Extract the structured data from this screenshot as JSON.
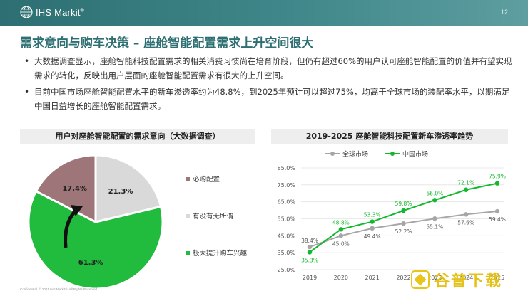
{
  "header": {
    "logo_text": "IHS Markit",
    "logo_mark": "®",
    "page_number": "12"
  },
  "title": "需求意向与购车决策 – 座舱智能配置需求上升空间很大",
  "bullets": [
    "大数据调查显示，座舱智能科技配置需求的相关消费习惯尚在培育阶段，但仍有超过60%的用户认可座舱智能配置的价值并有望实现需求的转化，反映出用户层面的座舱智能配置需求有很大的上升空间。",
    "目前中国市场座舱智能配置水平的新车渗透率约为48.8%，到2025年预计可以超过75%，均高于全球市场的装配率水平，以期满足中国日益增长的座舱智能配置需求。"
  ],
  "footer": {
    "confidential": "Confidential. © 2021 IHS Markit®. All Rights Reserved."
  },
  "watermark": {
    "text": "谷普下载"
  },
  "chart_data": [
    {
      "type": "pie",
      "title": "用户对座舱智能配置的需求意向（大数据调查）",
      "slices": [
        {
          "name": "必购配置",
          "value": 17.4,
          "label": "17.4%",
          "color": "#9e7578"
        },
        {
          "name": "有没有无所谓",
          "value": 21.3,
          "label": "21.3%",
          "color": "#d9d9d9"
        },
        {
          "name": "极大提升购车兴趣",
          "value": 61.3,
          "label": "61.3%",
          "color": "#21bb3e"
        }
      ],
      "legend_position": "right"
    },
    {
      "type": "line",
      "title": "2019-2025 座舱智能科技配置新车渗透率趋势",
      "x": [
        "2019",
        "2020",
        "2021",
        "2022",
        "2023",
        "2024",
        "2025"
      ],
      "ylim": [
        25,
        85
      ],
      "yticks": [
        "25.0%",
        "35.0%",
        "45.0%",
        "55.0%",
        "65.0%",
        "75.0%",
        "85.0%"
      ],
      "grid": true,
      "legend_position": "top",
      "series": [
        {
          "name": "全球市场",
          "color": "#a6a6a6",
          "values": [
            38.4,
            45.0,
            49.4,
            52.2,
            55.1,
            57.6,
            59.4
          ],
          "labels": [
            "38.4%",
            "45.0%",
            "49.4%",
            "52.2%",
            "55.1%",
            "57.6%",
            "59.4%"
          ]
        },
        {
          "name": "中国市场",
          "color": "#14b82e",
          "values": [
            35.3,
            48.8,
            53.3,
            59.8,
            66.0,
            72.1,
            75.9
          ],
          "labels": [
            "35.3%",
            "48.8%",
            "53.3%",
            "59.8%",
            "66.0%",
            "72.1%",
            "75.9%"
          ]
        }
      ]
    }
  ]
}
